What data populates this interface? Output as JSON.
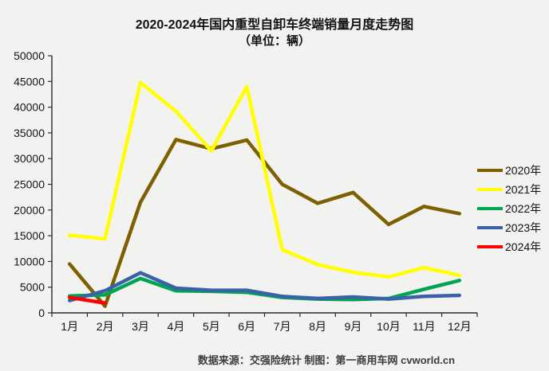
{
  "title": "2020-2024年国内重型自卸车终端销量月度走势图",
  "subtitle": "（单位：辆）",
  "footer": {
    "text": "数据来源：交强险统计  制图：第一商用车网 cvworld.cn"
  },
  "colors": {
    "background": "#f2f2f1",
    "axis": "#2b2b2b",
    "title_text": "#121212",
    "footer_text": "#3d3d3d"
  },
  "chart_data": {
    "type": "line",
    "title": "2020-2024年国内重型自卸车终端销量月度走势图",
    "subtitle": "（单位：辆）",
    "xlabel": "",
    "ylabel": "",
    "ylim": [
      0,
      50000
    ],
    "ytick_step": 5000,
    "grid": false,
    "legend_position": "right",
    "categories": [
      "1月",
      "2月",
      "3月",
      "4月",
      "5月",
      "6月",
      "7月",
      "8月",
      "9月",
      "10月",
      "11月",
      "12月"
    ],
    "series": [
      {
        "name": "2020年",
        "color": "#7f6000",
        "values": [
          9500,
          1300,
          21500,
          33700,
          31900,
          33600,
          25000,
          21300,
          23400,
          17200,
          20700,
          19300
        ]
      },
      {
        "name": "2021年",
        "color": "#ffff00",
        "values": [
          15100,
          14400,
          44800,
          39200,
          31500,
          44000,
          12300,
          9400,
          7900,
          7000,
          8800,
          7300
        ]
      },
      {
        "name": "2022年",
        "color": "#00a550",
        "values": [
          3300,
          3500,
          6700,
          4300,
          4200,
          4000,
          3000,
          2700,
          2600,
          2800,
          4600,
          6300
        ]
      },
      {
        "name": "2023年",
        "color": "#3a62a8",
        "values": [
          2400,
          4300,
          7800,
          4800,
          4400,
          4400,
          3200,
          2800,
          3100,
          2700,
          3200,
          3400
        ]
      },
      {
        "name": "2024年",
        "color": "#ff0000",
        "values": [
          3000,
          1900,
          null,
          null,
          null,
          null,
          null,
          null,
          null,
          null,
          null,
          null
        ]
      }
    ]
  }
}
